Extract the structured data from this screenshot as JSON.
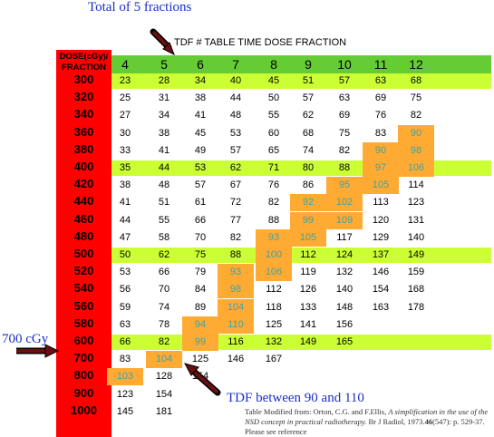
{
  "annotations": {
    "total": "Total of 5 fractions",
    "dose700": "700 cGy",
    "tdf_range": "TDF between 90 and 110"
  },
  "table": {
    "title": "TDF # TABLE TIME DOSE FRACTION",
    "dose_header_1": "DOSE(cGy)/",
    "dose_header_2": "FRACTION",
    "fractions": [
      "4",
      "5",
      "6",
      "7",
      "8",
      "9",
      "10",
      "11",
      "12"
    ],
    "rows": [
      {
        "dose": "300",
        "values": [
          "23",
          "28",
          "34",
          "40",
          "45",
          "51",
          "57",
          "63",
          "68"
        ]
      },
      {
        "dose": "320",
        "values": [
          "25",
          "31",
          "38",
          "44",
          "50",
          "57",
          "63",
          "69",
          "75"
        ]
      },
      {
        "dose": "340",
        "values": [
          "27",
          "34",
          "41",
          "48",
          "55",
          "62",
          "69",
          "76",
          "82"
        ]
      },
      {
        "dose": "360",
        "values": [
          "30",
          "38",
          "45",
          "53",
          "60",
          "68",
          "75",
          "83",
          "90"
        ]
      },
      {
        "dose": "380",
        "values": [
          "33",
          "41",
          "49",
          "57",
          "65",
          "74",
          "82",
          "90",
          "98"
        ]
      },
      {
        "dose": "400",
        "values": [
          "35",
          "44",
          "53",
          "62",
          "71",
          "80",
          "88",
          "97",
          "106"
        ]
      },
      {
        "dose": "420",
        "values": [
          "38",
          "48",
          "57",
          "67",
          "76",
          "86",
          "95",
          "105",
          "114"
        ]
      },
      {
        "dose": "440",
        "values": [
          "41",
          "51",
          "61",
          "72",
          "82",
          "92",
          "102",
          "113",
          "123"
        ]
      },
      {
        "dose": "460",
        "values": [
          "44",
          "55",
          "66",
          "77",
          "88",
          "99",
          "109",
          "120",
          "131"
        ]
      },
      {
        "dose": "480",
        "values": [
          "47",
          "58",
          "70",
          "82",
          "93",
          "105",
          "117",
          "129",
          "140"
        ]
      },
      {
        "dose": "500",
        "values": [
          "50",
          "62",
          "75",
          "88",
          "100",
          "112",
          "124",
          "137",
          "149"
        ]
      },
      {
        "dose": "520",
        "values": [
          "53",
          "66",
          "79",
          "93",
          "106",
          "119",
          "132",
          "146",
          "159"
        ]
      },
      {
        "dose": "540",
        "values": [
          "56",
          "70",
          "84",
          "98",
          "112",
          "126",
          "140",
          "154",
          "168"
        ]
      },
      {
        "dose": "560",
        "values": [
          "59",
          "74",
          "89",
          "104",
          "118",
          "133",
          "148",
          "163",
          "178"
        ]
      },
      {
        "dose": "580",
        "values": [
          "63",
          "78",
          "94",
          "110",
          "125",
          "141",
          "156",
          "",
          ""
        ]
      },
      {
        "dose": "600",
        "values": [
          "66",
          "82",
          "99",
          "116",
          "132",
          "149",
          "165",
          "",
          ""
        ]
      },
      {
        "dose": "700",
        "values": [
          "83",
          "104",
          "125",
          "146",
          "167",
          "",
          "",
          "",
          ""
        ]
      },
      {
        "dose": "800",
        "values": [
          "103",
          "128",
          "154",
          "",
          "",
          "",
          "",
          "",
          ""
        ]
      },
      {
        "dose": "900",
        "values": [
          "123",
          "154",
          "",
          "",
          "",
          "",
          "",
          "",
          ""
        ]
      },
      {
        "dose": "1000",
        "values": [
          "145",
          "181",
          "",
          "",
          "",
          "",
          "",
          "",
          ""
        ]
      }
    ]
  },
  "reference": {
    "prefix": "Table Modified from: Orton, C.G. and F.Ellis, ",
    "italic": "A simplification in the use of the NSD concept in practical radiotherapy.",
    "journal": " Br J Radiol, 1973.",
    "volume": "46",
    "suffix": "(547): p. 529-37. Please see reference"
  },
  "colors": {
    "dose_column": "#ff0000",
    "fraction_header": "#66cc33",
    "highlight_band": "#ccff33",
    "tdf_cell": "#ffaa33",
    "tdf_text": "#3aa6a6",
    "annotation_text": "#1a2fc8",
    "arrow": "#6b0f0f"
  }
}
